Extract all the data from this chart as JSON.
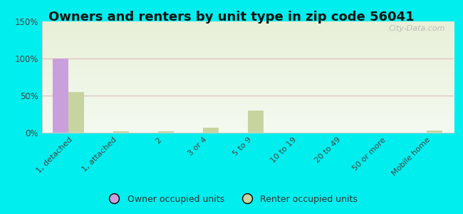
{
  "title": "Owners and renters by unit type in zip code 56041",
  "categories": [
    "1, detached",
    "1, attached",
    "2",
    "3 or 4",
    "5 to 9",
    "10 to 19",
    "20 to 49",
    "50 or more",
    "Mobile home"
  ],
  "owner_values": [
    100,
    0,
    0,
    0,
    0,
    0,
    0,
    0,
    0
  ],
  "renter_values": [
    55,
    2,
    2,
    7,
    30,
    0,
    0,
    0,
    3
  ],
  "owner_color": "#c9a0dc",
  "renter_color": "#c8d4a0",
  "ylim": [
    0,
    150
  ],
  "yticks": [
    0,
    50,
    100,
    150
  ],
  "ytick_labels": [
    "0%",
    "50%",
    "100%",
    "150%"
  ],
  "background_color": "#00eeee",
  "title_fontsize": 13,
  "bar_width": 0.35,
  "watermark": "City-Data.com",
  "grad_top": "#e8f0d8",
  "grad_bottom": "#f4faf0"
}
